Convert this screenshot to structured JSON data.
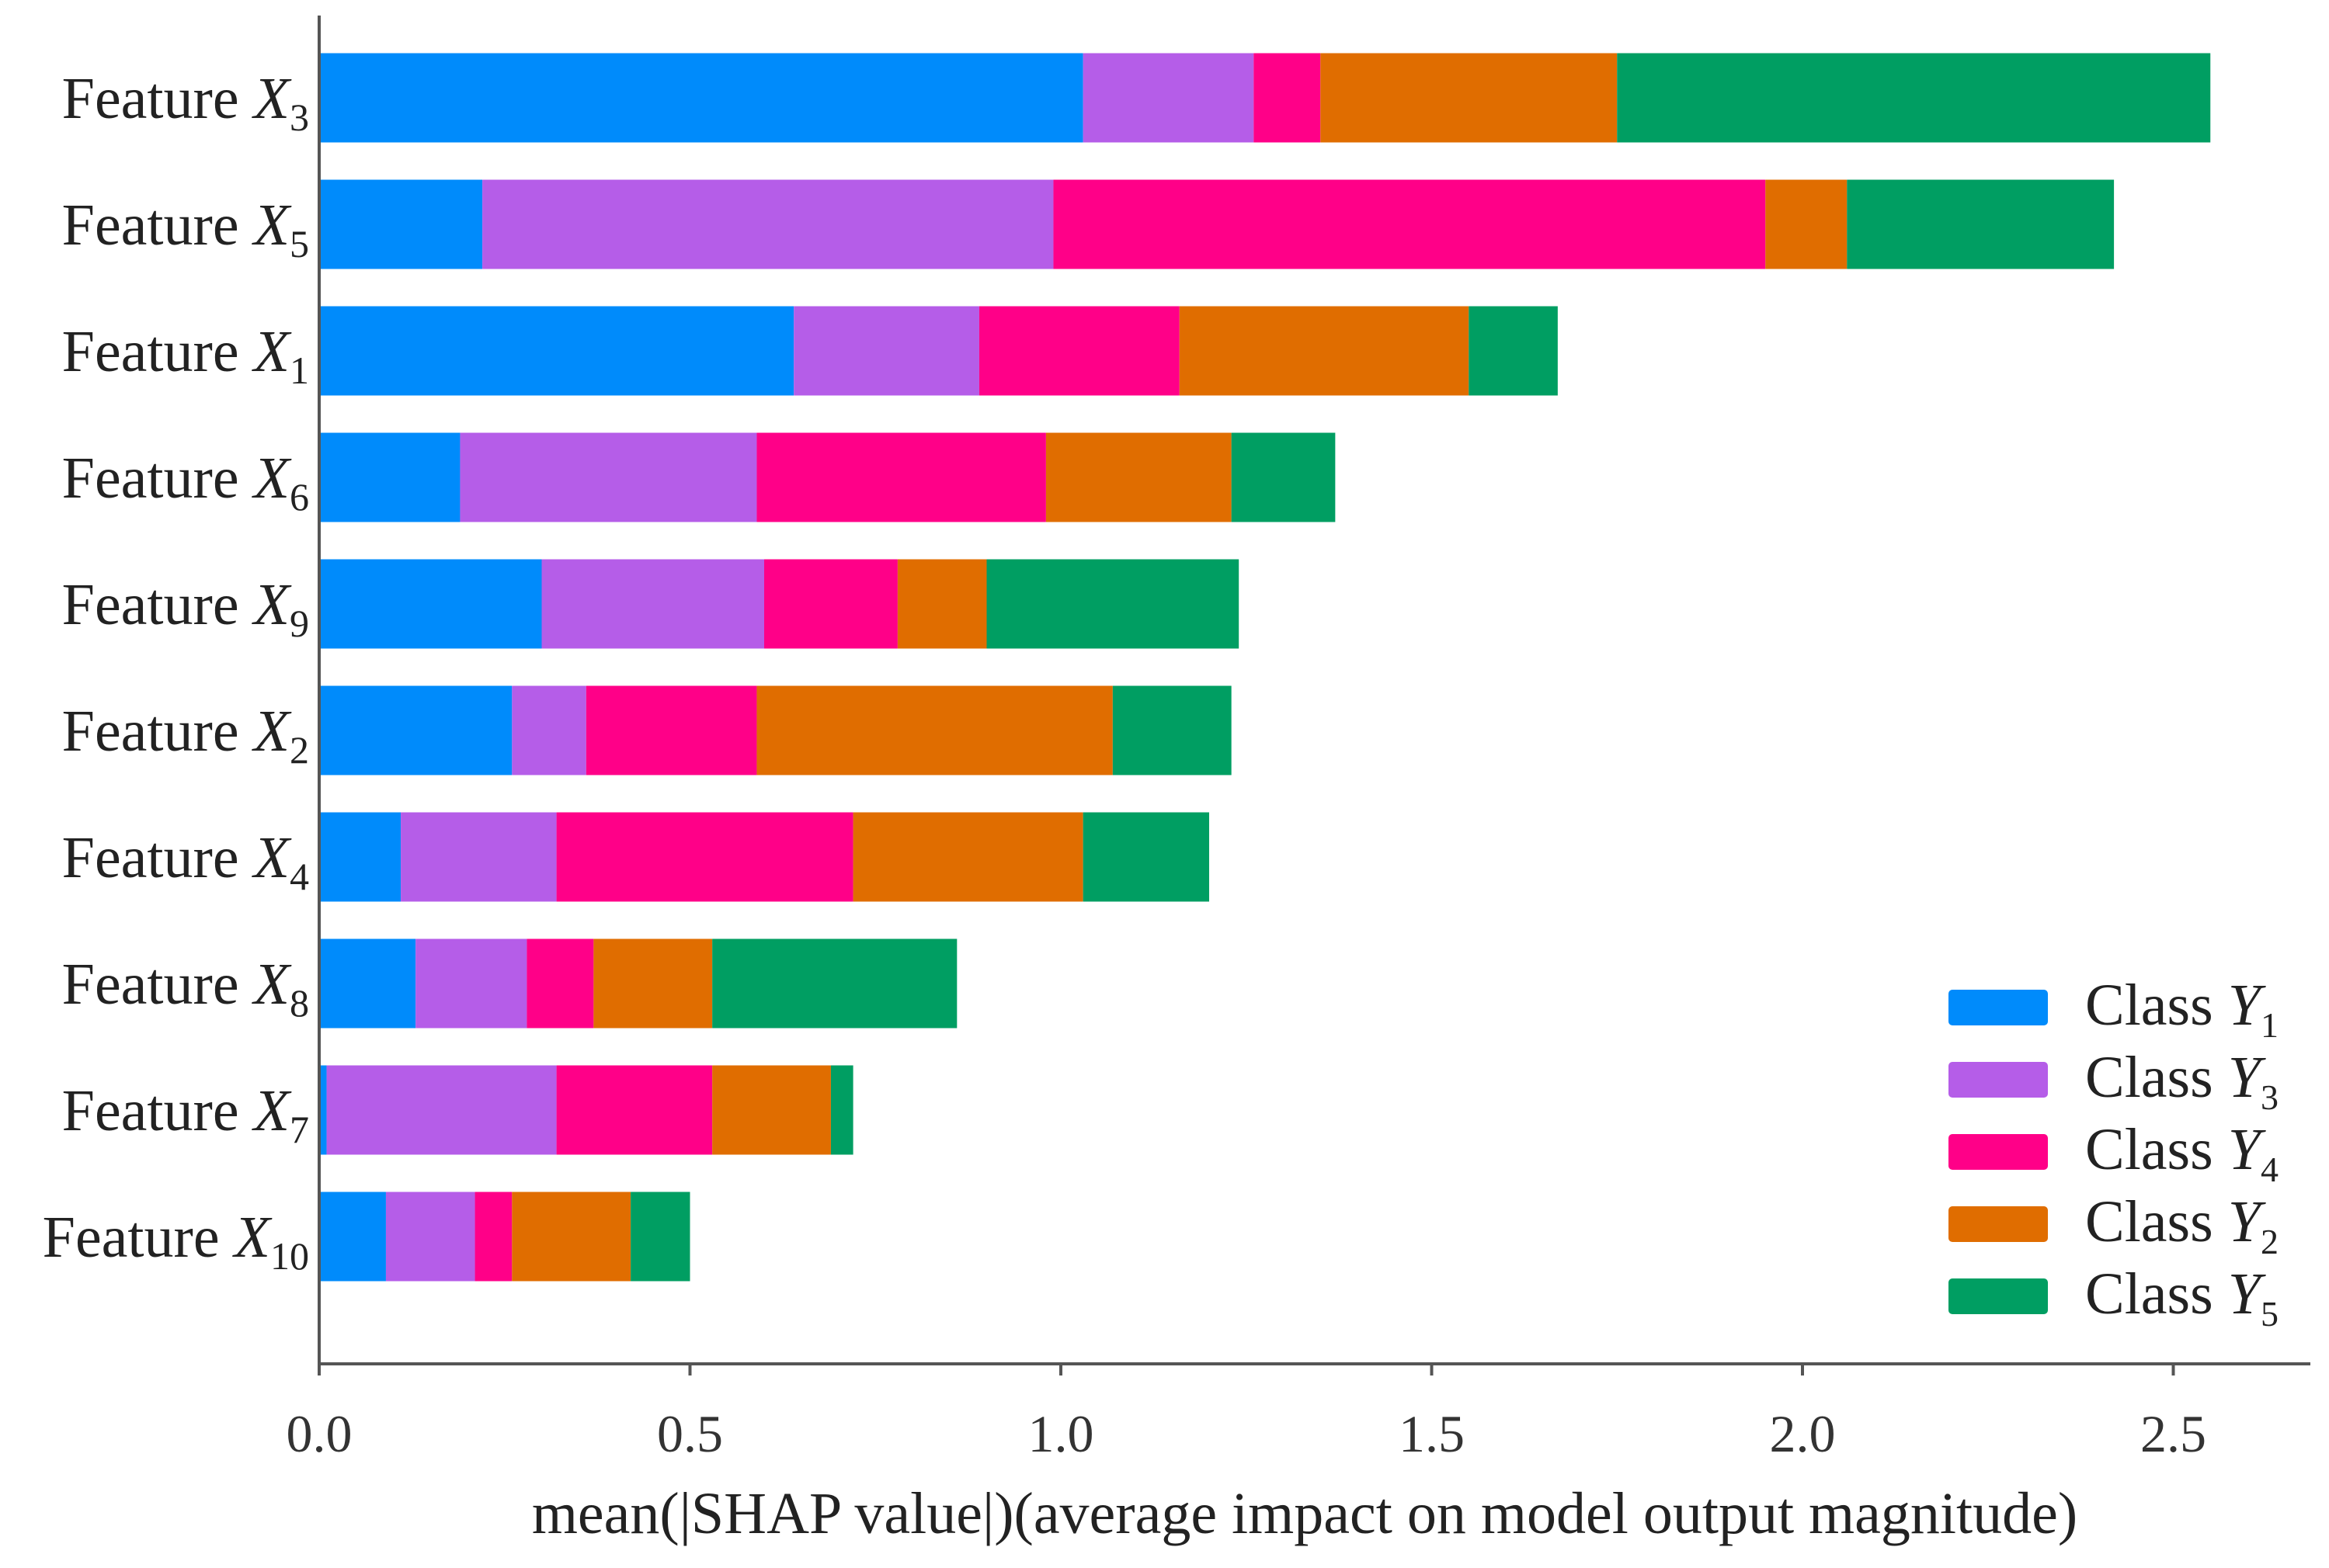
{
  "chart_data": {
    "type": "bar",
    "orientation": "horizontal",
    "stacked": true,
    "xlabel": "mean(|SHAP value|)(average impact on model output magnitude)",
    "ylabel": "",
    "xlim": [
      0,
      2.7
    ],
    "xticks": [
      "0.0",
      "0.5",
      "1.0",
      "1.5",
      "2.0",
      "2.5"
    ],
    "grid": false,
    "legend_placement": "bottom-right",
    "categories": [
      {
        "prefix": "Feature",
        "var": "X",
        "sub": "3"
      },
      {
        "prefix": "Feature",
        "var": "X",
        "sub": "5"
      },
      {
        "prefix": "Feature",
        "var": "X",
        "sub": "1"
      },
      {
        "prefix": "Feature",
        "var": "X",
        "sub": "6"
      },
      {
        "prefix": "Feature",
        "var": "X",
        "sub": "9"
      },
      {
        "prefix": "Feature",
        "var": "X",
        "sub": "2"
      },
      {
        "prefix": "Feature",
        "var": "X",
        "sub": "4"
      },
      {
        "prefix": "Feature",
        "var": "X",
        "sub": "8"
      },
      {
        "prefix": "Feature",
        "var": "X",
        "sub": "7"
      },
      {
        "prefix": "Feature",
        "var": "X",
        "sub": "10"
      }
    ],
    "series": [
      {
        "name": "Class",
        "var": "Y",
        "sub": "1",
        "color": "#008BFB",
        "values": [
          1.03,
          0.22,
          0.64,
          0.19,
          0.3,
          0.26,
          0.11,
          0.13,
          0.01,
          0.09
        ]
      },
      {
        "name": "Class",
        "var": "Y",
        "sub": "3",
        "color": "#B55DE8",
        "values": [
          0.23,
          0.77,
          0.25,
          0.4,
          0.3,
          0.1,
          0.21,
          0.15,
          0.31,
          0.12
        ]
      },
      {
        "name": "Class",
        "var": "Y",
        "sub": "4",
        "color": "#FF0088",
        "values": [
          0.09,
          0.96,
          0.27,
          0.39,
          0.18,
          0.23,
          0.4,
          0.09,
          0.21,
          0.05
        ]
      },
      {
        "name": "Class",
        "var": "Y",
        "sub": "2",
        "color": "#E06D00",
        "values": [
          0.4,
          0.11,
          0.39,
          0.25,
          0.12,
          0.48,
          0.31,
          0.16,
          0.16,
          0.16
        ]
      },
      {
        "name": "Class",
        "var": "Y",
        "sub": "5",
        "color": "#009E62",
        "values": [
          0.8,
          0.36,
          0.12,
          0.14,
          0.34,
          0.16,
          0.17,
          0.33,
          0.03,
          0.08
        ]
      }
    ]
  }
}
